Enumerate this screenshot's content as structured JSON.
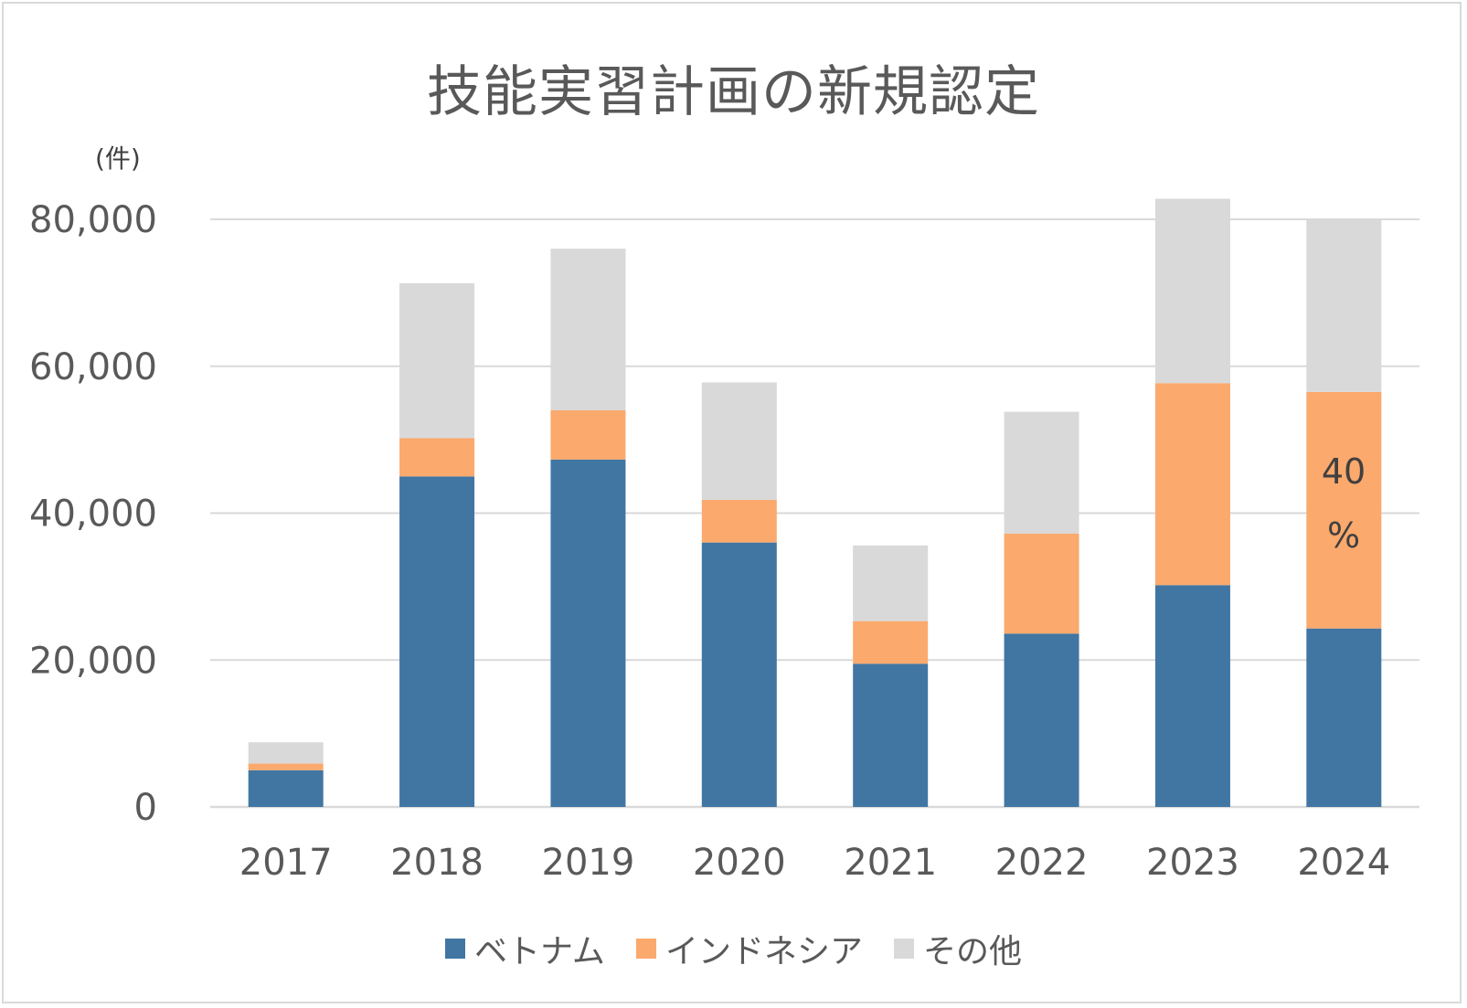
{
  "title": "技能実習計画の新規認定",
  "unit_label": "(件)",
  "colors": {
    "vietnam": "#4176a3",
    "indonesia": "#fba96c",
    "other": "#d9d9d9",
    "grid": "#d9d9d9",
    "text": "#595959"
  },
  "annotation": {
    "line1": "40",
    "line2": "%"
  },
  "legend": [
    {
      "label": "ベトナム",
      "color": "#4176a3"
    },
    {
      "label": "インドネシア",
      "color": "#fba96c"
    },
    {
      "label": "その他",
      "color": "#d9d9d9"
    }
  ],
  "chart_data": {
    "type": "bar",
    "stacked": true,
    "title": "技能実習計画の新規認定",
    "ylabel": "(件)",
    "xlabel": "",
    "ylim": [
      0,
      80000
    ],
    "yticks": [
      "0",
      "20,000",
      "40,000",
      "60,000",
      "80,000"
    ],
    "ytick_values": [
      0,
      20000,
      40000,
      60000,
      80000
    ],
    "grid": true,
    "legend_position": "bottom",
    "categories": [
      "2017",
      "2018",
      "2019",
      "2020",
      "2021",
      "2022",
      "2023",
      "2024"
    ],
    "series": [
      {
        "name": "ベトナム",
        "color": "#4176a3",
        "values": [
          5000,
          45000,
          47300,
          36000,
          19500,
          23600,
          30200,
          24300
        ]
      },
      {
        "name": "インドネシア",
        "color": "#fba96c",
        "values": [
          900,
          5200,
          6700,
          5800,
          5800,
          13600,
          27500,
          32200
        ]
      },
      {
        "name": "その他",
        "color": "#d9d9d9",
        "values": [
          2900,
          21100,
          22000,
          16000,
          10300,
          16600,
          25100,
          23500
        ]
      }
    ],
    "annotations": [
      {
        "category": "2024",
        "series": "インドネシア",
        "text": "40 %"
      }
    ]
  }
}
